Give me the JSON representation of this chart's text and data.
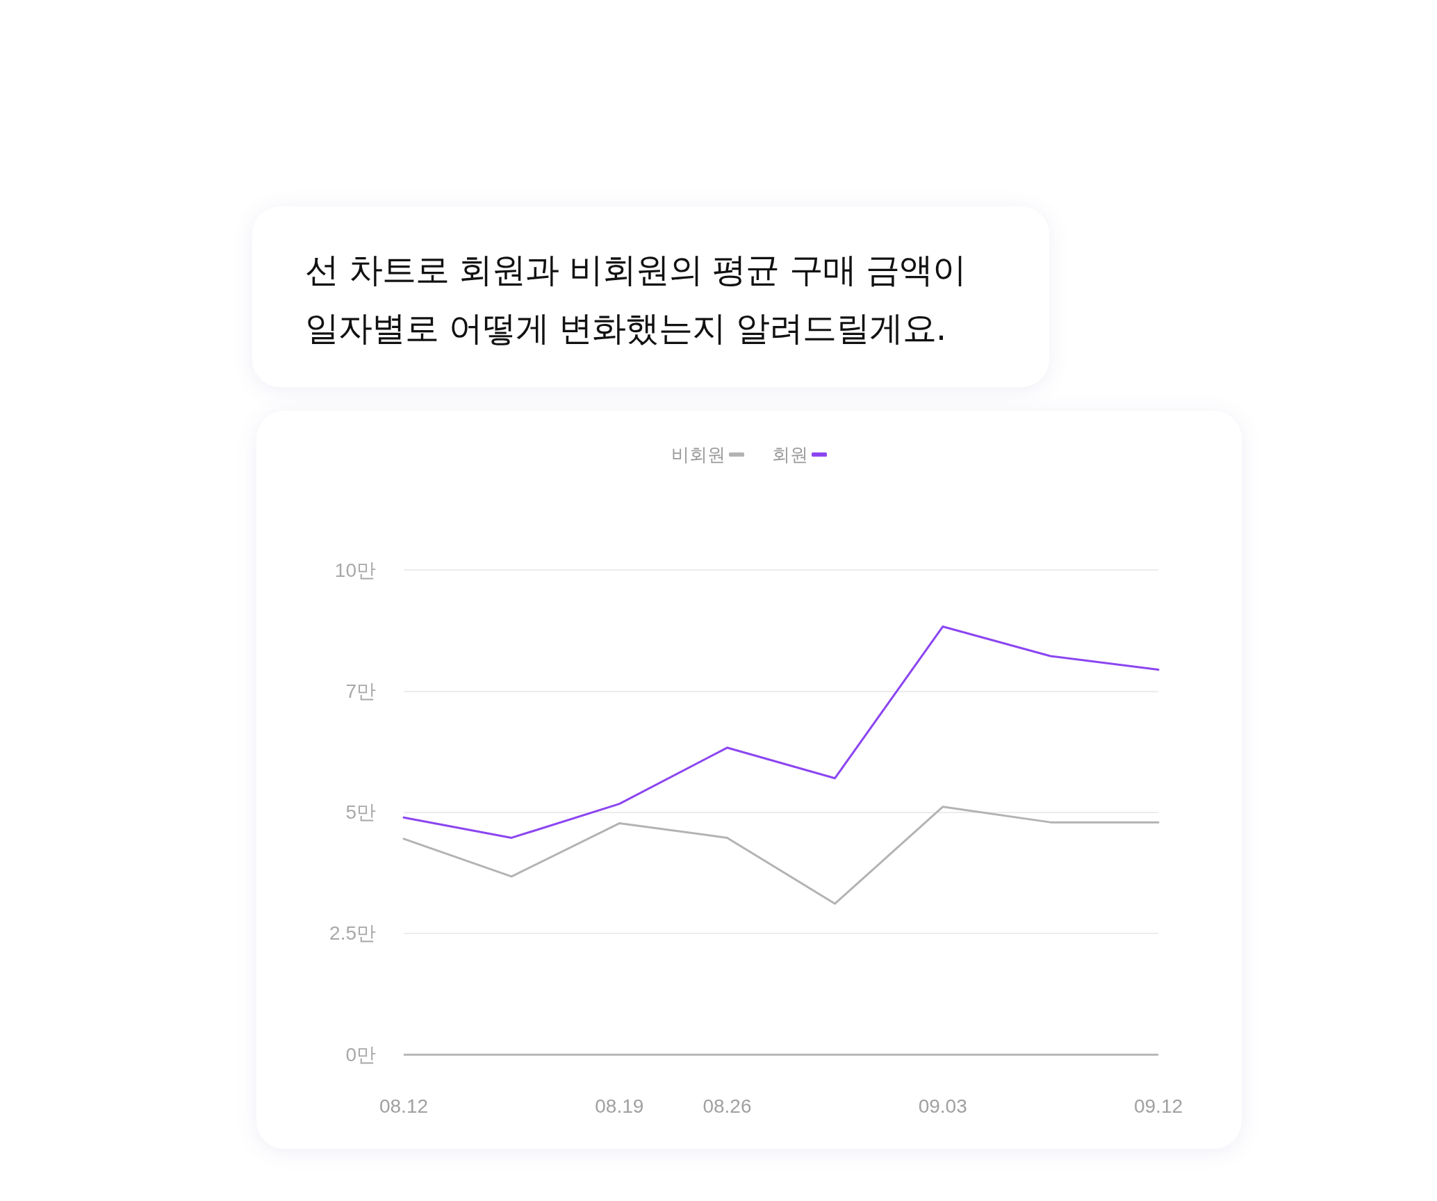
{
  "chart_data": {
    "type": "line",
    "title": "선 차트로 회원과 비회원의 평균 구매 금액이\n일자별로 어떻게 변화했는지 알려드릴게요.",
    "categories": [
      "08.12",
      null,
      "08.19",
      "08.26",
      null,
      "09.03",
      null,
      "09.12"
    ],
    "series": [
      {
        "name": "비회원",
        "color": "#b3b3b3",
        "values": [
          4.45,
          3.67,
          4.77,
          4.47,
          3.11,
          5.11,
          4.79,
          4.79
        ]
      },
      {
        "name": "회원",
        "color": "#8b45f0",
        "values": [
          4.89,
          4.47,
          5.17,
          6.33,
          5.7,
          8.83,
          8.22,
          7.94
        ]
      }
    ],
    "ylim": [
      0,
      10
    ],
    "yticks": [
      {
        "value": 0,
        "label": "0만"
      },
      {
        "value": 2.5,
        "label": "2.5만"
      },
      {
        "value": 5,
        "label": "5만"
      },
      {
        "value": 7.5,
        "label": "7만"
      },
      {
        "value": 10,
        "label": "10만"
      }
    ],
    "grid": "y",
    "legend": "top",
    "marker": "none",
    "line_style": "solid"
  }
}
